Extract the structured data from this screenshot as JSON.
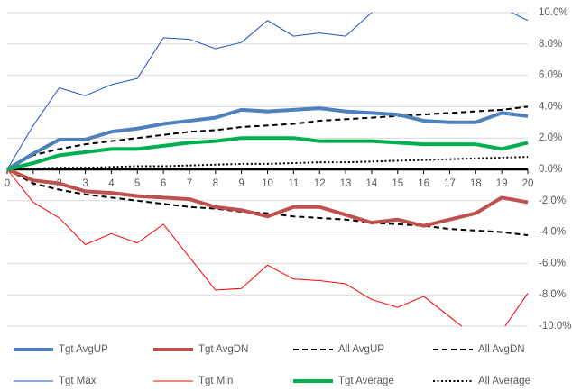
{
  "chart_data": {
    "type": "line",
    "x": [
      0,
      1,
      2,
      3,
      4,
      5,
      6,
      7,
      8,
      9,
      10,
      11,
      12,
      13,
      14,
      15,
      16,
      17,
      18,
      19,
      20
    ],
    "xlim": [
      0,
      20
    ],
    "ylim": [
      -10,
      10
    ],
    "yticks": [
      {
        "value": -10,
        "label": "-10.0%"
      },
      {
        "value": -8,
        "label": "-8.0%"
      },
      {
        "value": -6,
        "label": "-6.0%"
      },
      {
        "value": -4,
        "label": "-4.0%"
      },
      {
        "value": -2,
        "label": "-2.0%"
      },
      {
        "value": 0,
        "label": "0.0%"
      },
      {
        "value": 2,
        "label": "2.0%"
      },
      {
        "value": 4,
        "label": "4.0%"
      },
      {
        "value": 6,
        "label": "6.0%"
      },
      {
        "value": 8,
        "label": "8.0%"
      },
      {
        "value": 10,
        "label": "10.0%"
      }
    ],
    "grid": true,
    "y_axis_side": "right",
    "legend": "bottom",
    "series": [
      {
        "name": "Tgt AvgUP",
        "color": "#4f81bd",
        "linewidth": 4,
        "dash": "solid",
        "values": [
          0,
          1.0,
          1.9,
          1.9,
          2.4,
          2.6,
          2.9,
          3.1,
          3.3,
          3.8,
          3.7,
          3.8,
          3.9,
          3.7,
          3.6,
          3.5,
          3.1,
          3.0,
          3.0,
          3.6,
          3.4
        ]
      },
      {
        "name": "Tgt AvgDN",
        "color": "#c0504d",
        "linewidth": 4,
        "dash": "solid",
        "values": [
          0,
          -0.7,
          -0.9,
          -1.4,
          -1.5,
          -1.7,
          -1.8,
          -1.9,
          -2.4,
          -2.6,
          -3.0,
          -2.4,
          -2.4,
          -2.9,
          -3.4,
          -3.2,
          -3.6,
          -3.2,
          -2.8,
          -1.8,
          -2.1
        ]
      },
      {
        "name": "All AvgUP",
        "color": "#000000",
        "linewidth": 2,
        "dash": "dashed",
        "values": [
          0,
          0.9,
          1.3,
          1.6,
          1.8,
          2.0,
          2.2,
          2.4,
          2.5,
          2.7,
          2.8,
          2.9,
          3.1,
          3.2,
          3.3,
          3.4,
          3.5,
          3.6,
          3.7,
          3.8,
          4.0
        ]
      },
      {
        "name": "All AvgDN",
        "color": "#000000",
        "linewidth": 2,
        "dash": "dashed",
        "values": [
          0,
          -0.9,
          -1.3,
          -1.6,
          -1.8,
          -2.0,
          -2.2,
          -2.4,
          -2.5,
          -2.7,
          -2.8,
          -3.0,
          -3.1,
          -3.2,
          -3.4,
          -3.5,
          -3.6,
          -3.8,
          -3.9,
          -4.0,
          -4.2
        ]
      },
      {
        "name": "Tgt Max",
        "color": "#1f4fc9",
        "linewidth": 1,
        "dash": "solid",
        "values": [
          0,
          2.8,
          5.2,
          4.7,
          5.4,
          5.8,
          8.4,
          8.3,
          7.7,
          8.1,
          9.5,
          8.5,
          8.7,
          8.5,
          10.0,
          10.8,
          11.2,
          11.0,
          10.9,
          10.3,
          9.5
        ]
      },
      {
        "name": "Tgt Min",
        "color": "#ff0000",
        "linewidth": 1,
        "dash": "solid",
        "values": [
          0,
          -2.1,
          -3.1,
          -4.8,
          -4.1,
          -4.7,
          -3.5,
          -5.6,
          -7.7,
          -7.6,
          -6.1,
          -7.0,
          -7.1,
          -7.3,
          -8.3,
          -8.8,
          -8.1,
          -9.4,
          -10.7,
          -10.3,
          -7.9
        ]
      },
      {
        "name": "Tgt Average",
        "color": "#00b050",
        "linewidth": 4,
        "dash": "solid",
        "values": [
          0,
          0.4,
          0.9,
          1.1,
          1.3,
          1.3,
          1.5,
          1.7,
          1.8,
          2.0,
          2.0,
          2.0,
          1.8,
          1.8,
          1.8,
          1.7,
          1.6,
          1.6,
          1.6,
          1.3,
          1.7
        ]
      },
      {
        "name": "All Average",
        "color": "#000000",
        "linewidth": 2,
        "dash": "dotted",
        "values": [
          0,
          0.05,
          0.1,
          0.1,
          0.15,
          0.2,
          0.2,
          0.25,
          0.3,
          0.35,
          0.35,
          0.4,
          0.45,
          0.45,
          0.5,
          0.55,
          0.6,
          0.65,
          0.7,
          0.75,
          0.8
        ]
      }
    ]
  }
}
